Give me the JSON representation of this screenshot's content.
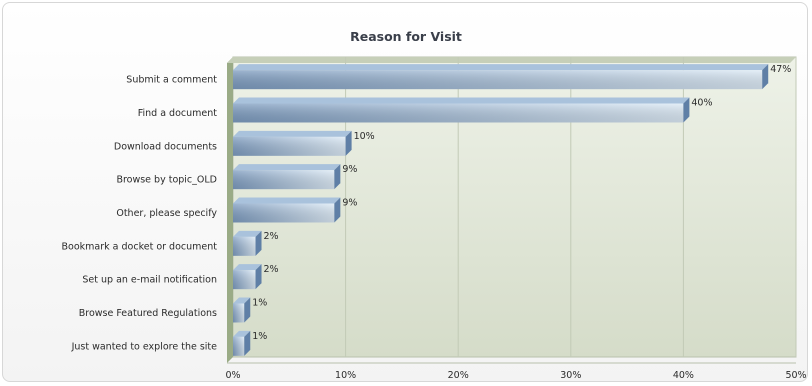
{
  "chart_data": {
    "type": "bar",
    "orientation": "horizontal",
    "title": "Reason for Visit",
    "categories": [
      "Submit a comment",
      "Find a document",
      "Download documents",
      "Browse by topic_OLD",
      "Other, please specify",
      "Bookmark a docket or document",
      "Set up an e-mail notification",
      "Browse Featured Regulations",
      "Just wanted to explore the site"
    ],
    "values": [
      47,
      40,
      10,
      9,
      9,
      2,
      2,
      1,
      1
    ],
    "value_labels": [
      "47%",
      "40%",
      "10%",
      "9%",
      "9%",
      "2%",
      "2%",
      "1%",
      "1%"
    ],
    "xticks": [
      "0%",
      "10%",
      "20%",
      "30%",
      "40%",
      "50%"
    ],
    "xlim": [
      0,
      50
    ],
    "xlabel": "",
    "ylabel": "",
    "grid": true,
    "legend": "none",
    "colors": {
      "bar_light": "#dceaf6",
      "bar_dark": "#7d9cc0",
      "bar_top": "#a9c2dc",
      "bar_side": "#5f7fa6",
      "plot_bg_top": "#eef2e8",
      "plot_bg_bottom": "#d5dcc9",
      "wall_side": "#9aab86",
      "gridline": "#c2cab6"
    }
  }
}
